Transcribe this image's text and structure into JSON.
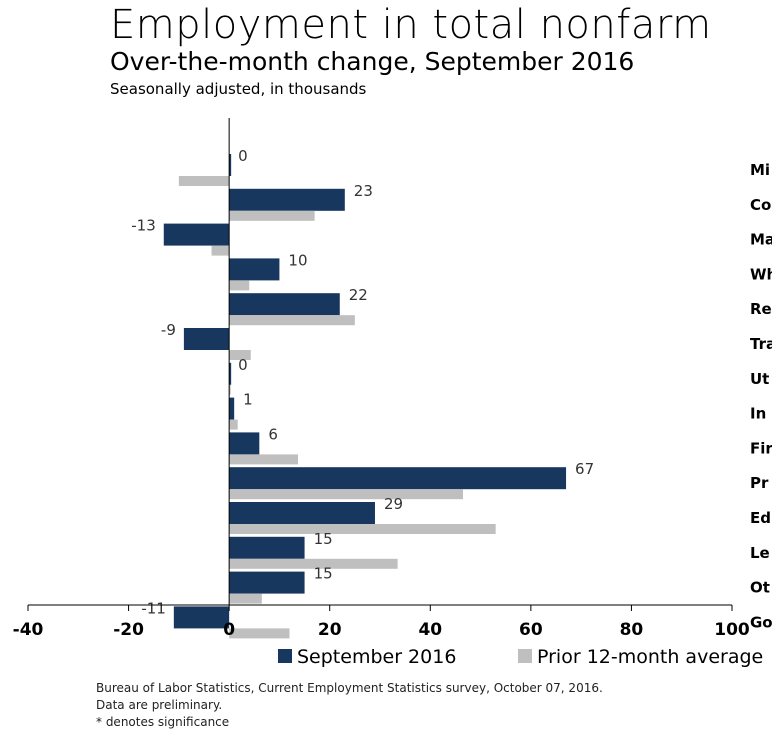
{
  "title": "Employment in total nonfarm",
  "subtitle": "Over-the-month change, September 2016",
  "note": "Seasonally adjusted, in thousands",
  "colors": {
    "current": "#17375e",
    "prior": "#bfbfbf"
  },
  "legend": {
    "current": "September 2016",
    "prior": "Prior 12-month average"
  },
  "footer": {
    "source": "Bureau of Labor Statistics, Current Employment Statistics survey, October 07, 2016.",
    "prelim": "Data are preliminary.",
    "sig": "* denotes significance"
  },
  "chart_data": {
    "type": "bar",
    "orientation": "horizontal",
    "categories": [
      "Mi",
      "Co",
      "Ma",
      "Wh",
      "Re",
      "Tra",
      "Ut",
      "In",
      "Fir",
      "Pr",
      "Ed",
      "Le",
      "Ot",
      "Go"
    ],
    "series": [
      {
        "name": "September 2016",
        "values": [
          0,
          23,
          -13,
          10,
          22,
          -9,
          0,
          1,
          6,
          67,
          29,
          15,
          15,
          -11
        ],
        "labels": [
          "0",
          "23",
          "-13",
          "10",
          "22",
          "-9",
          "0",
          "1",
          "6",
          "67",
          "29",
          "15",
          "15",
          "-11"
        ]
      },
      {
        "name": "Prior 12-month average",
        "values": [
          -10,
          17,
          -3.5,
          4,
          25,
          4.3,
          0.3,
          1.7,
          13.7,
          46.5,
          53,
          33.5,
          6.5,
          12
        ]
      }
    ],
    "xlim": [
      -40,
      100
    ],
    "xticks": [
      -40,
      -20,
      0,
      20,
      40,
      60,
      80,
      100
    ],
    "grid": false,
    "legend_position": "bottom"
  }
}
